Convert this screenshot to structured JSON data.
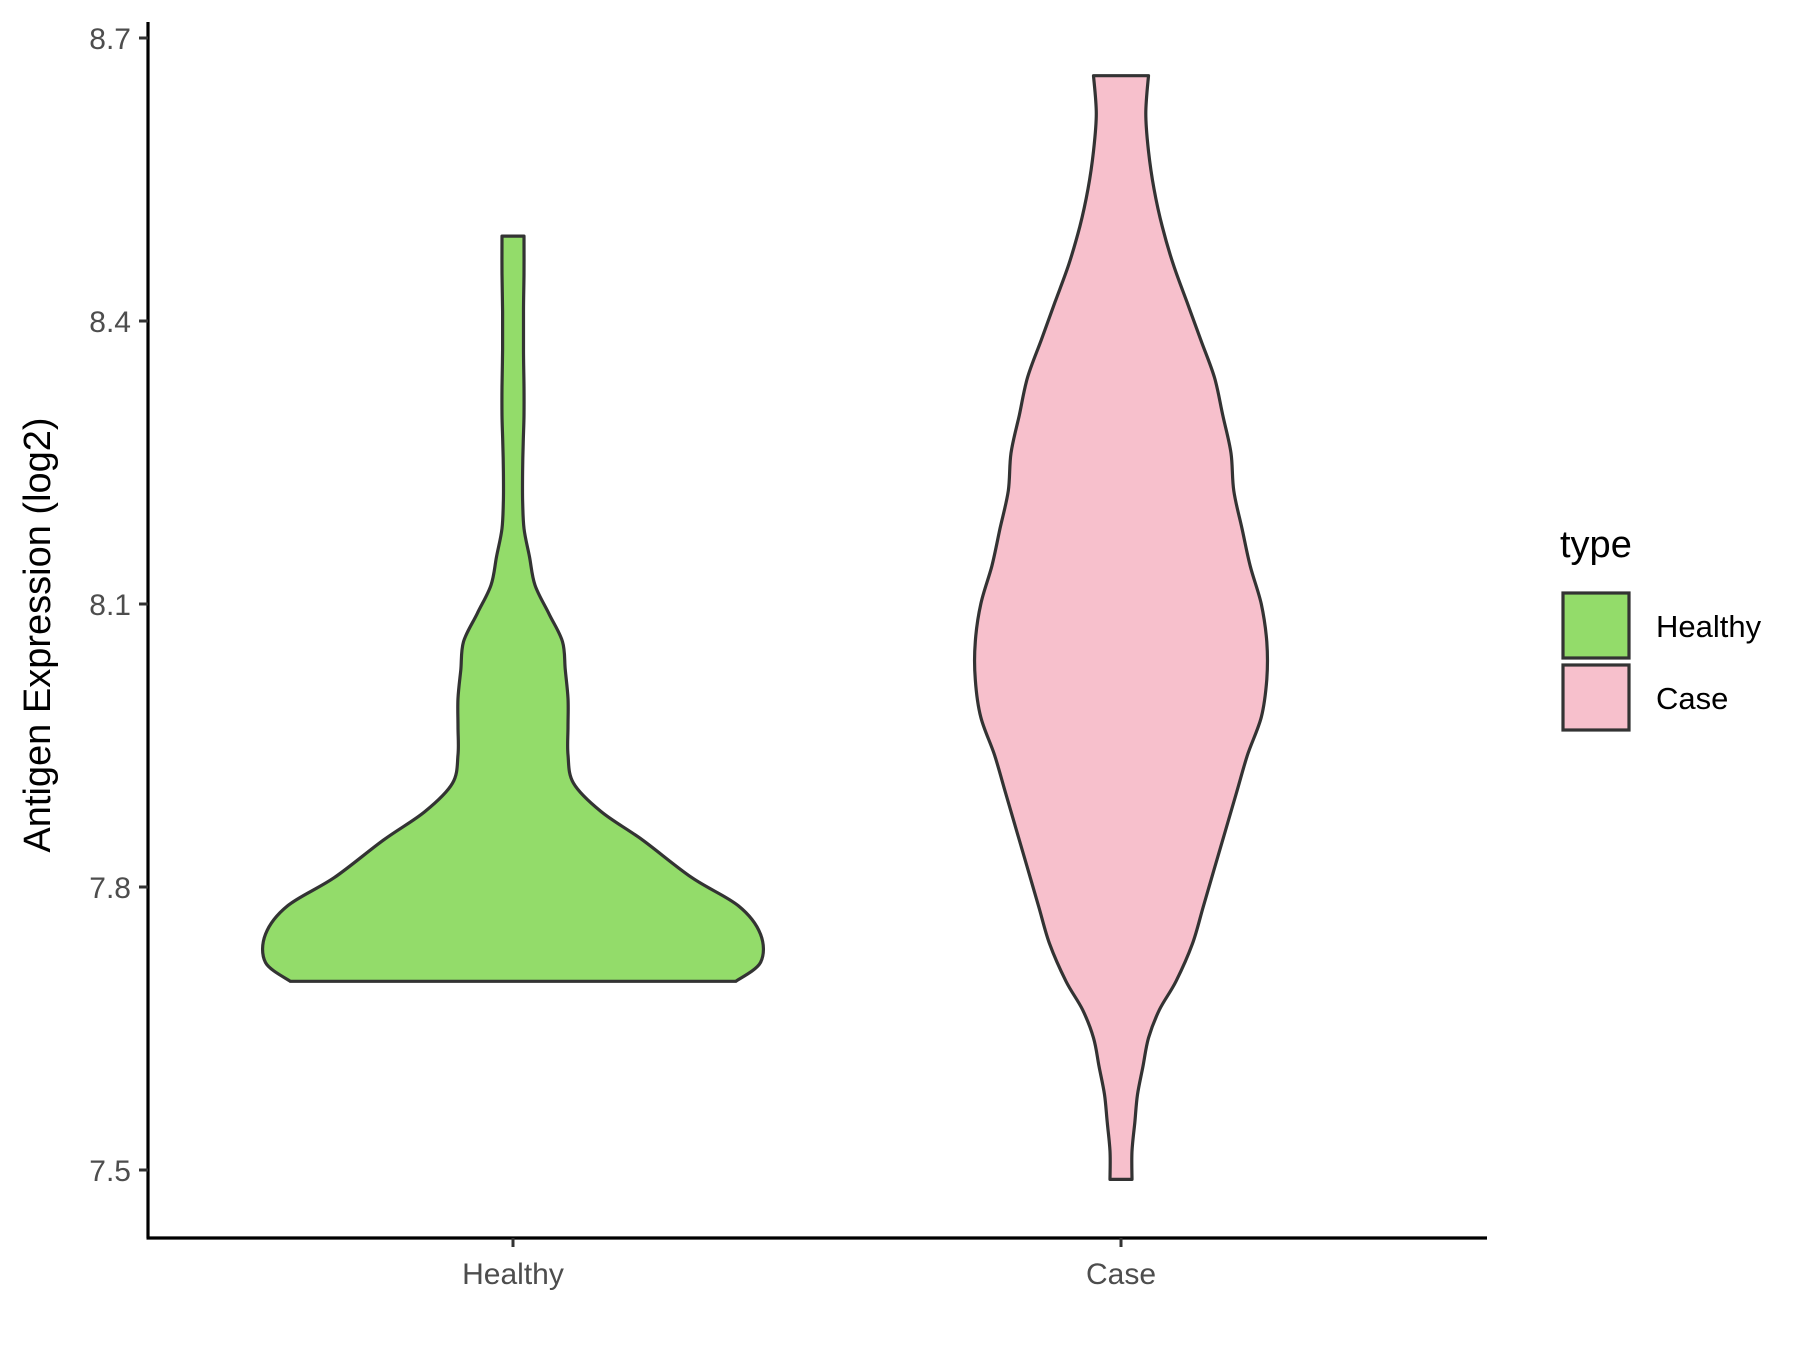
{
  "chart_data": {
    "type": "violin",
    "title": "",
    "xlabel": "",
    "ylabel": "Antigen Expression (log2)",
    "ylim": [
      7.43,
      8.72
    ],
    "yticks": [
      7.5,
      7.8,
      8.1,
      8.4,
      8.7
    ],
    "ytick_labels": [
      "7.5",
      "7.8",
      "8.1",
      "8.4",
      "8.7"
    ],
    "categories": [
      "Healthy",
      "Case"
    ],
    "grid": false,
    "legend": {
      "title": "type",
      "position": "right",
      "entries": [
        {
          "label": "Healthy",
          "color": "#93dc6a"
        },
        {
          "label": "Case",
          "color": "#f7c0cc"
        }
      ]
    },
    "series": [
      {
        "name": "Healthy",
        "color": "#93dc6a",
        "min": 7.7,
        "max": 8.49,
        "density_profile": [
          [
            7.7,
            0.81
          ],
          [
            7.72,
            0.9
          ],
          [
            7.75,
            0.9
          ],
          [
            7.78,
            0.82
          ],
          [
            7.81,
            0.65
          ],
          [
            7.85,
            0.47
          ],
          [
            7.88,
            0.32
          ],
          [
            7.91,
            0.22
          ],
          [
            7.94,
            0.2
          ],
          [
            7.97,
            0.2
          ],
          [
            8.0,
            0.2
          ],
          [
            8.03,
            0.19
          ],
          [
            8.06,
            0.18
          ],
          [
            8.09,
            0.13
          ],
          [
            8.12,
            0.08
          ],
          [
            8.15,
            0.06
          ],
          [
            8.18,
            0.04
          ],
          [
            8.21,
            0.035
          ],
          [
            8.24,
            0.035
          ],
          [
            8.27,
            0.037
          ],
          [
            8.3,
            0.04
          ],
          [
            8.33,
            0.04
          ],
          [
            8.37,
            0.038
          ],
          [
            8.41,
            0.038
          ],
          [
            8.45,
            0.04
          ],
          [
            8.49,
            0.04
          ]
        ]
      },
      {
        "name": "Case",
        "color": "#f7c0cc",
        "min": 7.49,
        "max": 8.66,
        "density_profile": [
          [
            7.49,
            0.04
          ],
          [
            7.52,
            0.04
          ],
          [
            7.55,
            0.05
          ],
          [
            7.58,
            0.06
          ],
          [
            7.61,
            0.08
          ],
          [
            7.64,
            0.1
          ],
          [
            7.67,
            0.14
          ],
          [
            7.7,
            0.2
          ],
          [
            7.74,
            0.26
          ],
          [
            7.78,
            0.3
          ],
          [
            7.82,
            0.34
          ],
          [
            7.86,
            0.38
          ],
          [
            7.9,
            0.42
          ],
          [
            7.94,
            0.46
          ],
          [
            7.98,
            0.51
          ],
          [
            8.02,
            0.53
          ],
          [
            8.06,
            0.53
          ],
          [
            8.1,
            0.51
          ],
          [
            8.14,
            0.47
          ],
          [
            8.18,
            0.44
          ],
          [
            8.22,
            0.41
          ],
          [
            8.26,
            0.4
          ],
          [
            8.3,
            0.37
          ],
          [
            8.34,
            0.34
          ],
          [
            8.38,
            0.29
          ],
          [
            8.42,
            0.24
          ],
          [
            8.46,
            0.19
          ],
          [
            8.5,
            0.15
          ],
          [
            8.54,
            0.12
          ],
          [
            8.58,
            0.1
          ],
          [
            8.62,
            0.09
          ],
          [
            8.66,
            0.1
          ]
        ]
      }
    ]
  }
}
